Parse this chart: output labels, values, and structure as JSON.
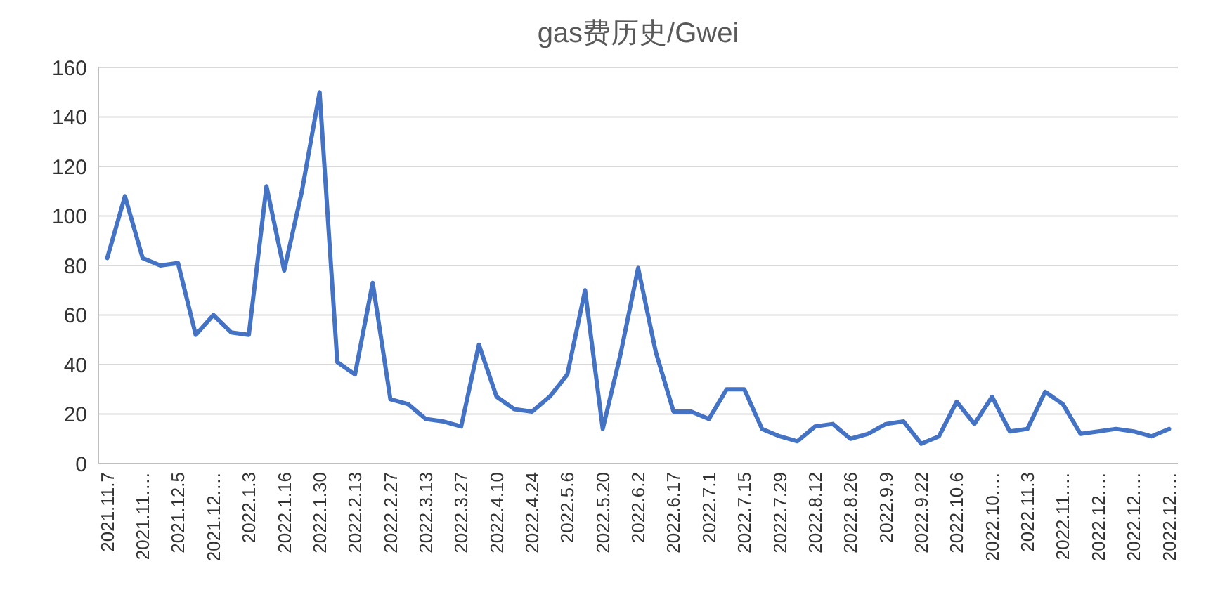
{
  "chart_data": {
    "type": "line",
    "title": "gas费历史/Gwei",
    "categories": [
      "2021.11.7",
      null,
      "2021.11.…",
      null,
      "2021.12.5",
      null,
      "2021.12.…",
      null,
      "2022.1.3",
      null,
      "2022.1.16",
      null,
      "2022.1.30",
      null,
      "2022.2.13",
      null,
      "2022.2.27",
      null,
      "2022.3.13",
      null,
      "2022.3.27",
      null,
      "2022.4.10",
      null,
      "2022.4.24",
      null,
      "2022.5.6",
      null,
      "2022.5.20",
      null,
      "2022.6.2",
      null,
      "2022.6.17",
      null,
      "2022.7.1",
      null,
      "2022.7.15",
      null,
      "2022.7.29",
      null,
      "2022.8.12",
      null,
      "2022.8.26",
      null,
      "2022.9.9",
      null,
      "2022.9.22",
      null,
      "2022.10.6",
      null,
      "2022.10.…",
      null,
      "2022.11.3",
      null,
      "2022.11.…",
      null,
      "2022.12.…",
      null,
      "2022.12.…",
      null,
      "2022.12.…"
    ],
    "series": [
      {
        "color": "#4472c4",
        "values": [
          83,
          108,
          83,
          80,
          81,
          52,
          60,
          53,
          52,
          112,
          78,
          110,
          150,
          41,
          36,
          73,
          26,
          24,
          18,
          17,
          15,
          48,
          27,
          22,
          21,
          27,
          36,
          70,
          14,
          44,
          79,
          45,
          21,
          21,
          18,
          30,
          30,
          14,
          11,
          9,
          15,
          16,
          10,
          12,
          16,
          17,
          8,
          11,
          25,
          16,
          27,
          13,
          14,
          29,
          24,
          12,
          13,
          14,
          13,
          11,
          14
        ]
      }
    ],
    "ylim": [
      0,
      160
    ],
    "yticks": [
      0,
      20,
      40,
      60,
      80,
      100,
      120,
      140,
      160
    ],
    "grid": "y",
    "marker": "none",
    "line_style": "solid"
  }
}
